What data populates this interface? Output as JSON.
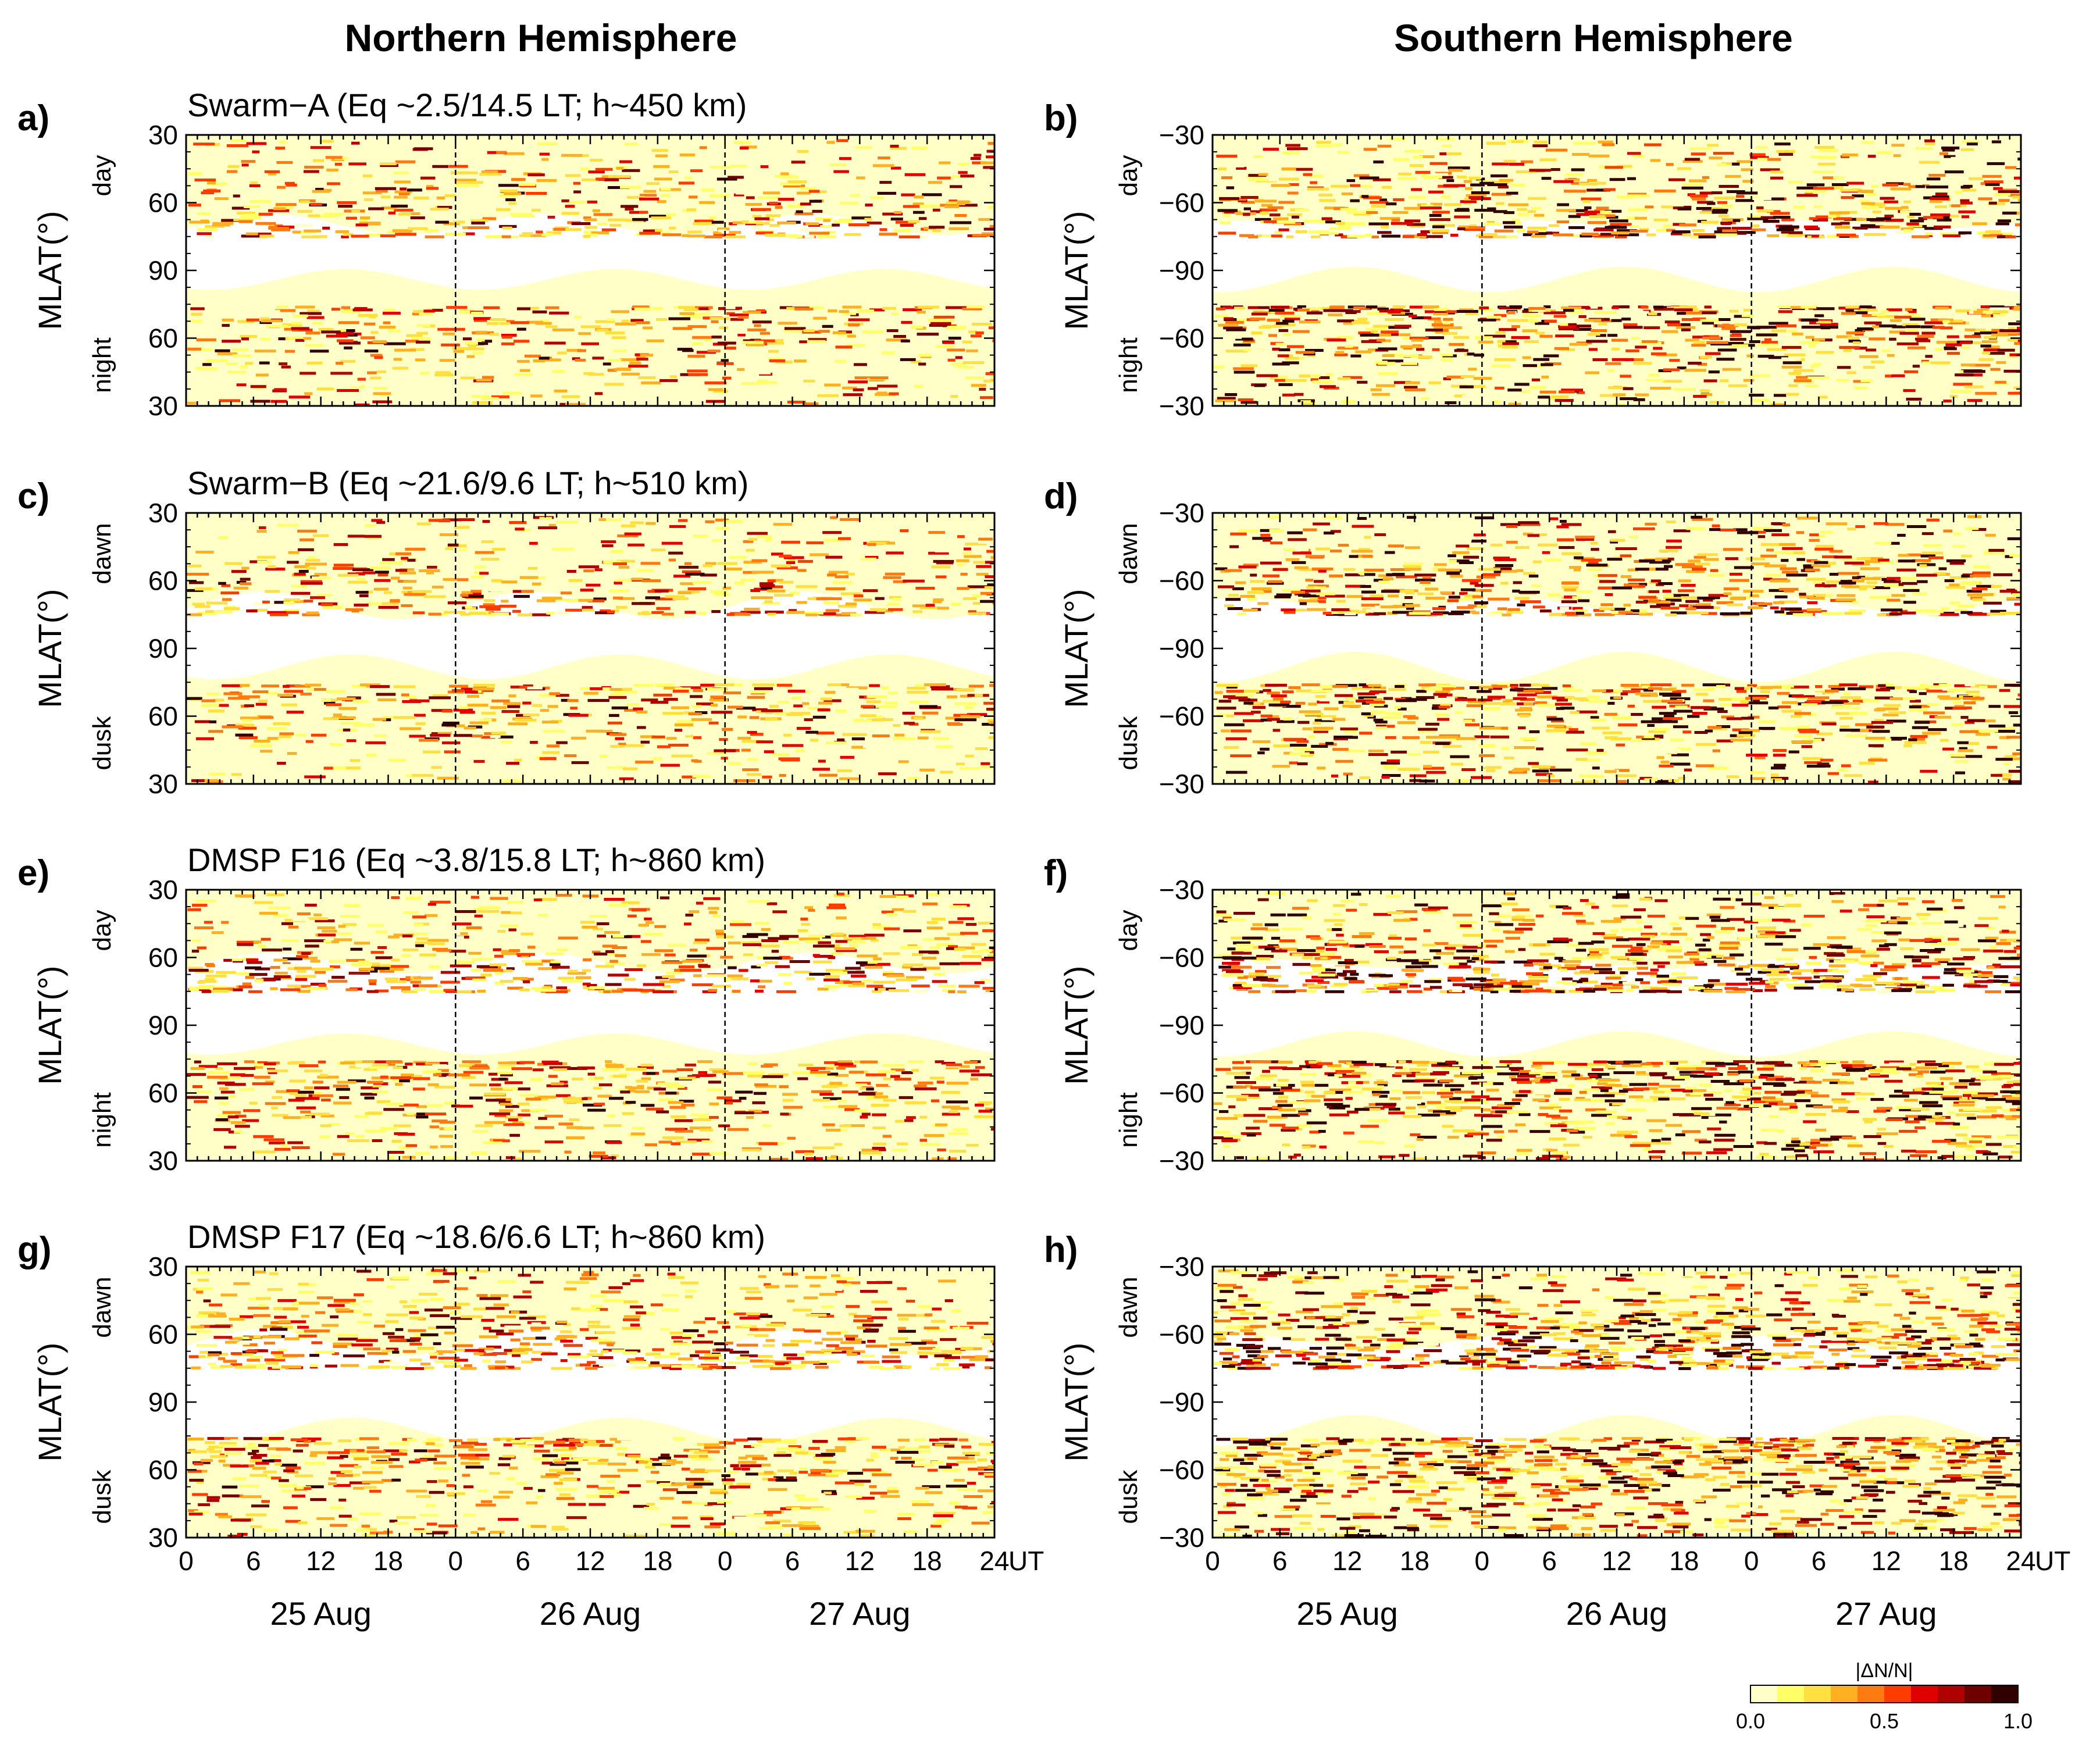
{
  "figure": {
    "hemispheres": [
      "Northern Hemisphere",
      "Southern Hemisphere"
    ],
    "ylabel": "MLAT(°)",
    "x_axis_unit": "UT",
    "dates": [
      "25 Aug",
      "26 Aug",
      "27 Aug"
    ],
    "x_tick_labels": [
      "0",
      "6",
      "12",
      "18",
      "0",
      "6",
      "12",
      "18",
      "0",
      "6",
      "12",
      "18",
      "24"
    ]
  },
  "chart_data": [
    {
      "type": "heatmap",
      "panel": "a)",
      "hemisphere": "Northern Hemisphere",
      "title": "Swarm−A  (Eq ~2.5/14.5 LT; h~450 km)",
      "side_labels": [
        "day",
        "night"
      ],
      "ytick_labels": [
        "30",
        "60",
        "90",
        "60",
        "30"
      ],
      "xlim": [
        0,
        72
      ],
      "value_range": [
        0,
        1
      ]
    },
    {
      "type": "heatmap",
      "panel": "b)",
      "hemisphere": "Southern Hemisphere",
      "title": "",
      "side_labels": [
        "day",
        "night"
      ],
      "ytick_labels": [
        "−30",
        "−60",
        "−90",
        "−60",
        "−30"
      ],
      "xlim": [
        0,
        72
      ],
      "value_range": [
        0,
        1
      ]
    },
    {
      "type": "heatmap",
      "panel": "c)",
      "hemisphere": "Northern Hemisphere",
      "title": "Swarm−B  (Eq ~21.6/9.6 LT; h~510 km)",
      "side_labels": [
        "dawn",
        "dusk"
      ],
      "ytick_labels": [
        "30",
        "60",
        "90",
        "60",
        "30"
      ],
      "xlim": [
        0,
        72
      ],
      "value_range": [
        0,
        1
      ]
    },
    {
      "type": "heatmap",
      "panel": "d)",
      "hemisphere": "Southern Hemisphere",
      "title": "",
      "side_labels": [
        "dawn",
        "dusk"
      ],
      "ytick_labels": [
        "−30",
        "−60",
        "−90",
        "−60",
        "−30"
      ],
      "xlim": [
        0,
        72
      ],
      "value_range": [
        0,
        1
      ]
    },
    {
      "type": "heatmap",
      "panel": "e)",
      "hemisphere": "Northern Hemisphere",
      "title": "DMSP F16  (Eq ~3.8/15.8 LT; h~860 km)",
      "side_labels": [
        "day",
        "night"
      ],
      "ytick_labels": [
        "30",
        "60",
        "90",
        "60",
        "30"
      ],
      "xlim": [
        0,
        72
      ],
      "value_range": [
        0,
        1
      ]
    },
    {
      "type": "heatmap",
      "panel": "f)",
      "hemisphere": "Southern Hemisphere",
      "title": "",
      "side_labels": [
        "day",
        "night"
      ],
      "ytick_labels": [
        "−30",
        "−60",
        "−90",
        "−60",
        "−30"
      ],
      "xlim": [
        0,
        72
      ],
      "value_range": [
        0,
        1
      ]
    },
    {
      "type": "heatmap",
      "panel": "g)",
      "hemisphere": "Northern Hemisphere",
      "title": "DMSP F17  (Eq ~18.6/6.6 LT; h~860 km)",
      "side_labels": [
        "dawn",
        "dusk"
      ],
      "ytick_labels": [
        "30",
        "60",
        "90",
        "60",
        "30"
      ],
      "xlim": [
        0,
        72
      ],
      "value_range": [
        0,
        1
      ]
    },
    {
      "type": "heatmap",
      "panel": "h)",
      "hemisphere": "Southern Hemisphere",
      "title": "",
      "side_labels": [
        "dawn",
        "dusk"
      ],
      "ytick_labels": [
        "−30",
        "−60",
        "−90",
        "−60",
        "−30"
      ],
      "xlim": [
        0,
        72
      ],
      "value_range": [
        0,
        1
      ]
    }
  ],
  "colorbar": {
    "title": "|ΔN/N|",
    "tick_labels": [
      "0.0",
      "0.5",
      "1.0"
    ],
    "range": [
      0,
      1
    ],
    "colors": [
      "#ffffc8",
      "#ffff66",
      "#ffe040",
      "#ffb020",
      "#ff7a10",
      "#ff3c00",
      "#e00000",
      "#b00000",
      "#700000",
      "#300000"
    ]
  },
  "style": {
    "background": "#ffffc8",
    "gap": "#ffffff",
    "line": "#000000"
  }
}
